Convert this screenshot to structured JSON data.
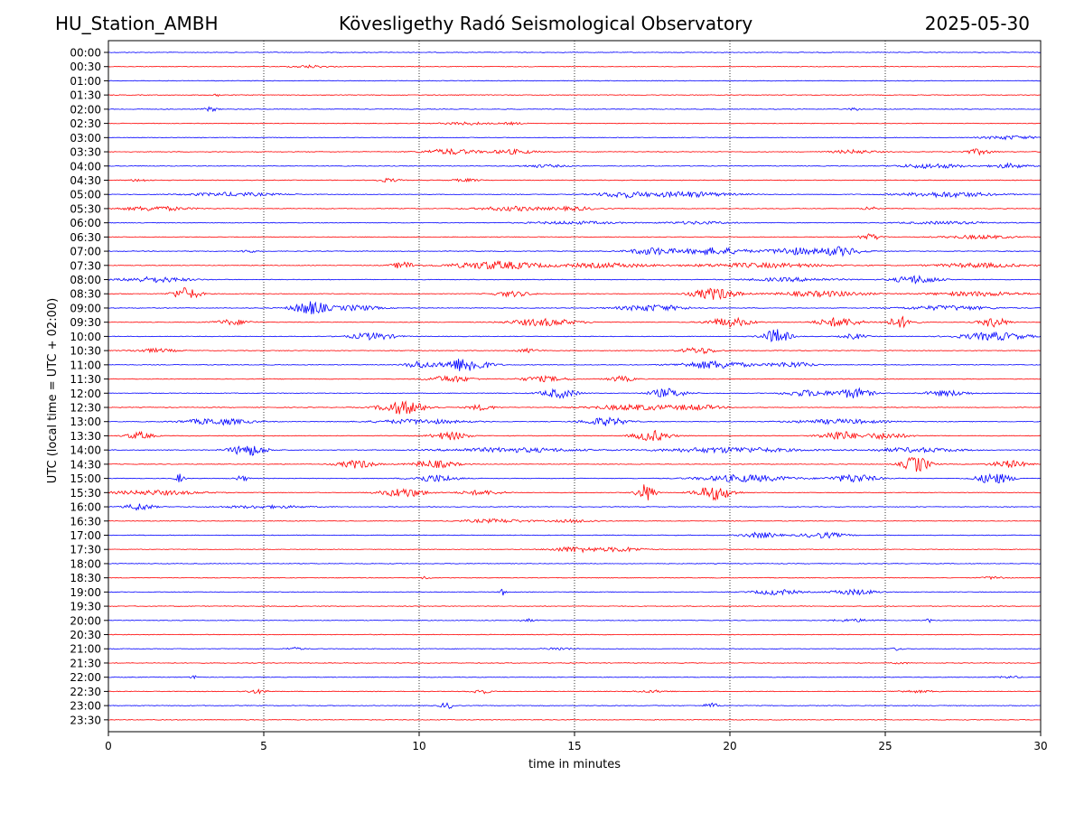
{
  "header": {
    "station": "HU_Station_AMBH",
    "observatory": "Kövesligethy Radó Seismological Observatory",
    "date": "2025-05-30"
  },
  "chart_data": {
    "type": "line",
    "title": "Kövesligethy Radó Seismological Observatory",
    "xlabel": "time in minutes",
    "ylabel": "UTC (local time = UTC + 02:00)",
    "xlim": [
      0,
      30
    ],
    "x_ticks": [
      0,
      5,
      10,
      15,
      20,
      25,
      30
    ],
    "grid": "vertical dotted lines at each x tick",
    "colors": [
      "#0000ff",
      "#ff0000"
    ],
    "rows": [
      {
        "label": "00:00",
        "color": "#0000ff",
        "bursts": []
      },
      {
        "label": "00:30",
        "color": "#ff0000",
        "bursts": [
          [
            6.5,
            0.8,
            1.5
          ]
        ]
      },
      {
        "label": "01:00",
        "color": "#0000ff",
        "bursts": []
      },
      {
        "label": "01:30",
        "color": "#ff0000",
        "bursts": [
          [
            3.5,
            0.2,
            1.5
          ]
        ]
      },
      {
        "label": "02:00",
        "color": "#0000ff",
        "bursts": [
          [
            3.3,
            0.3,
            2.5
          ],
          [
            24.0,
            0.3,
            1.5
          ]
        ]
      },
      {
        "label": "02:30",
        "color": "#ff0000",
        "bursts": [
          [
            11.5,
            1.0,
            1.5
          ],
          [
            13.0,
            0.5,
            1.2
          ]
        ]
      },
      {
        "label": "03:00",
        "color": "#0000ff",
        "bursts": [
          [
            29.0,
            1.2,
            2.0
          ]
        ]
      },
      {
        "label": "03:30",
        "color": "#ff0000",
        "bursts": [
          [
            11.0,
            1.2,
            3.0
          ],
          [
            13.0,
            1.0,
            2.5
          ],
          [
            24.0,
            1.0,
            2.0
          ],
          [
            28.0,
            0.6,
            3.0
          ]
        ]
      },
      {
        "label": "04:00",
        "color": "#0000ff",
        "bursts": [
          [
            14.0,
            1.0,
            1.5
          ],
          [
            26.5,
            1.5,
            2.5
          ],
          [
            29.0,
            0.8,
            2.5
          ]
        ]
      },
      {
        "label": "04:30",
        "color": "#ff0000",
        "bursts": [
          [
            1.0,
            0.4,
            1.5
          ],
          [
            9.0,
            0.5,
            2.0
          ],
          [
            11.5,
            0.6,
            1.5
          ]
        ]
      },
      {
        "label": "05:00",
        "color": "#0000ff",
        "bursts": [
          [
            4.0,
            2.0,
            2.0
          ],
          [
            16.5,
            1.0,
            3.0
          ],
          [
            18.5,
            2.0,
            3.0
          ],
          [
            27.0,
            2.0,
            3.0
          ]
        ]
      },
      {
        "label": "05:30",
        "color": "#ff0000",
        "bursts": [
          [
            1.5,
            1.5,
            2.5
          ],
          [
            13.0,
            1.5,
            2.5
          ],
          [
            15.0,
            1.0,
            2.0
          ],
          [
            24.5,
            0.3,
            2.5
          ]
        ]
      },
      {
        "label": "06:00",
        "color": "#0000ff",
        "bursts": [
          [
            15.0,
            2.0,
            1.5
          ],
          [
            19.0,
            1.5,
            1.5
          ],
          [
            27.0,
            2.0,
            1.5
          ]
        ]
      },
      {
        "label": "06:30",
        "color": "#ff0000",
        "bursts": [
          [
            24.5,
            0.5,
            3.5
          ],
          [
            28.0,
            1.5,
            2.0
          ]
        ]
      },
      {
        "label": "07:00",
        "color": "#0000ff",
        "bursts": [
          [
            4.5,
            0.3,
            2.0
          ],
          [
            17.5,
            1.0,
            4.0
          ],
          [
            19.5,
            1.5,
            4.0
          ],
          [
            22.0,
            1.0,
            4.0
          ],
          [
            23.5,
            1.0,
            5.0
          ]
        ]
      },
      {
        "label": "07:30",
        "color": "#ff0000",
        "bursts": [
          [
            9.5,
            0.5,
            4.0
          ],
          [
            12.5,
            2.0,
            4.5
          ],
          [
            16.0,
            2.0,
            2.5
          ],
          [
            21.0,
            3.0,
            2.5
          ],
          [
            28.0,
            2.0,
            2.5
          ]
        ]
      },
      {
        "label": "08:00",
        "color": "#0000ff",
        "bursts": [
          [
            1.5,
            1.5,
            3.0
          ],
          [
            22.0,
            2.0,
            2.0
          ],
          [
            26.0,
            1.0,
            4.5
          ]
        ]
      },
      {
        "label": "08:30",
        "color": "#ff0000",
        "bursts": [
          [
            2.5,
            0.6,
            7.0
          ],
          [
            13.0,
            0.8,
            3.0
          ],
          [
            19.5,
            1.0,
            6.5
          ],
          [
            23.0,
            2.0,
            3.0
          ],
          [
            28.0,
            2.0,
            2.5
          ]
        ]
      },
      {
        "label": "09:00",
        "color": "#0000ff",
        "bursts": [
          [
            6.5,
            0.8,
            7.5
          ],
          [
            8.0,
            1.0,
            3.0
          ],
          [
            17.5,
            1.5,
            3.5
          ],
          [
            27.0,
            2.0,
            2.5
          ]
        ]
      },
      {
        "label": "09:30",
        "color": "#ff0000",
        "bursts": [
          [
            4.0,
            0.8,
            3.0
          ],
          [
            14.0,
            1.5,
            4.0
          ],
          [
            20.0,
            1.0,
            5.0
          ],
          [
            23.5,
            1.0,
            5.0
          ],
          [
            25.5,
            0.6,
            6.0
          ],
          [
            28.5,
            0.6,
            5.5
          ]
        ]
      },
      {
        "label": "10:00",
        "color": "#0000ff",
        "bursts": [
          [
            8.5,
            1.0,
            4.0
          ],
          [
            21.5,
            0.6,
            8.0
          ],
          [
            24.0,
            0.5,
            3.0
          ],
          [
            28.5,
            1.5,
            4.5
          ]
        ]
      },
      {
        "label": "10:30",
        "color": "#ff0000",
        "bursts": [
          [
            1.5,
            1.0,
            2.0
          ],
          [
            13.5,
            0.5,
            2.0
          ],
          [
            19.0,
            0.8,
            3.5
          ]
        ]
      },
      {
        "label": "11:00",
        "color": "#0000ff",
        "bursts": [
          [
            11.5,
            1.0,
            8.0
          ],
          [
            10.0,
            0.6,
            4.0
          ],
          [
            19.5,
            1.5,
            4.5
          ],
          [
            22.0,
            1.0,
            3.0
          ]
        ]
      },
      {
        "label": "11:30",
        "color": "#ff0000",
        "bursts": [
          [
            11.0,
            1.0,
            3.5
          ],
          [
            14.0,
            1.0,
            3.0
          ],
          [
            16.5,
            0.6,
            3.0
          ]
        ]
      },
      {
        "label": "12:00",
        "color": "#0000ff",
        "bursts": [
          [
            14.5,
            0.8,
            5.0
          ],
          [
            18.0,
            0.8,
            5.0
          ],
          [
            24.0,
            0.8,
            5.5
          ],
          [
            22.5,
            1.0,
            3.5
          ],
          [
            27.0,
            1.0,
            3.0
          ]
        ]
      },
      {
        "label": "12:30",
        "color": "#ff0000",
        "bursts": [
          [
            9.5,
            1.0,
            7.5
          ],
          [
            12.0,
            0.6,
            3.0
          ],
          [
            17.0,
            2.0,
            3.0
          ],
          [
            19.0,
            1.0,
            2.5
          ]
        ]
      },
      {
        "label": "13:00",
        "color": "#0000ff",
        "bursts": [
          [
            3.5,
            1.5,
            3.5
          ],
          [
            16.0,
            1.0,
            4.5
          ],
          [
            10.0,
            2.0,
            2.5
          ],
          [
            23.5,
            2.0,
            2.5
          ]
        ]
      },
      {
        "label": "13:30",
        "color": "#ff0000",
        "bursts": [
          [
            1.0,
            0.6,
            4.0
          ],
          [
            11.0,
            0.8,
            4.5
          ],
          [
            17.5,
            0.8,
            6.0
          ],
          [
            23.5,
            0.8,
            5.5
          ],
          [
            25.0,
            1.0,
            3.5
          ]
        ]
      },
      {
        "label": "14:00",
        "color": "#0000ff",
        "bursts": [
          [
            4.5,
            0.8,
            6.5
          ],
          [
            13.0,
            3.0,
            2.5
          ],
          [
            20.0,
            3.0,
            3.0
          ],
          [
            26.0,
            2.0,
            2.5
          ]
        ]
      },
      {
        "label": "14:30",
        "color": "#ff0000",
        "bursts": [
          [
            8.0,
            0.8,
            4.5
          ],
          [
            10.5,
            1.0,
            4.0
          ],
          [
            26.0,
            0.6,
            9.0
          ],
          [
            29.0,
            0.8,
            4.0
          ]
        ]
      },
      {
        "label": "15:00",
        "color": "#0000ff",
        "bursts": [
          [
            2.3,
            0.2,
            5.0
          ],
          [
            4.3,
            0.3,
            3.0
          ],
          [
            10.5,
            1.0,
            4.0
          ],
          [
            20.5,
            2.0,
            4.0
          ],
          [
            24.0,
            1.0,
            4.5
          ],
          [
            28.5,
            0.8,
            6.0
          ]
        ]
      },
      {
        "label": "15:30",
        "color": "#ff0000",
        "bursts": [
          [
            1.5,
            2.0,
            2.5
          ],
          [
            9.5,
            1.0,
            5.0
          ],
          [
            17.3,
            0.4,
            10.0
          ],
          [
            19.5,
            0.8,
            8.0
          ],
          [
            12.0,
            1.0,
            2.5
          ]
        ]
      },
      {
        "label": "16:00",
        "color": "#0000ff",
        "bursts": [
          [
            1.0,
            0.6,
            4.0
          ],
          [
            5.0,
            2.0,
            1.5
          ]
        ]
      },
      {
        "label": "16:30",
        "color": "#ff0000",
        "bursts": [
          [
            12.5,
            1.5,
            2.0
          ],
          [
            15.0,
            1.0,
            1.5
          ]
        ]
      },
      {
        "label": "17:00",
        "color": "#0000ff",
        "bursts": [
          [
            21.0,
            0.8,
            3.0
          ],
          [
            23.0,
            1.0,
            3.0
          ]
        ]
      },
      {
        "label": "17:30",
        "color": "#ff0000",
        "bursts": [
          [
            15.0,
            1.0,
            3.0
          ],
          [
            16.5,
            1.0,
            2.5
          ]
        ]
      },
      {
        "label": "18:00",
        "color": "#0000ff",
        "bursts": []
      },
      {
        "label": "18:30",
        "color": "#ff0000",
        "bursts": [
          [
            10.2,
            0.2,
            1.5
          ],
          [
            28.5,
            0.5,
            1.5
          ]
        ]
      },
      {
        "label": "19:00",
        "color": "#0000ff",
        "bursts": [
          [
            12.7,
            0.15,
            3.5
          ],
          [
            21.5,
            1.0,
            3.0
          ],
          [
            24.0,
            1.0,
            3.0
          ]
        ]
      },
      {
        "label": "19:30",
        "color": "#ff0000",
        "bursts": []
      },
      {
        "label": "20:00",
        "color": "#0000ff",
        "bursts": [
          [
            13.5,
            0.4,
            1.5
          ],
          [
            24.0,
            1.0,
            1.5
          ],
          [
            26.4,
            0.1,
            2.5
          ]
        ]
      },
      {
        "label": "20:30",
        "color": "#ff0000",
        "bursts": []
      },
      {
        "label": "21:00",
        "color": "#0000ff",
        "bursts": [
          [
            6.0,
            0.4,
            1.5
          ],
          [
            14.5,
            0.6,
            1.5
          ],
          [
            25.4,
            0.2,
            2.0
          ]
        ]
      },
      {
        "label": "21:30",
        "color": "#ff0000",
        "bursts": [
          [
            25.5,
            0.3,
            1.2
          ]
        ]
      },
      {
        "label": "22:00",
        "color": "#0000ff",
        "bursts": [
          [
            2.8,
            0.2,
            1.8
          ],
          [
            29.0,
            0.5,
            1.2
          ]
        ]
      },
      {
        "label": "22:30",
        "color": "#ff0000",
        "bursts": [
          [
            4.8,
            0.5,
            2.0
          ],
          [
            12.0,
            0.4,
            2.5
          ],
          [
            17.5,
            0.8,
            1.2
          ],
          [
            26.0,
            1.0,
            1.2
          ]
        ]
      },
      {
        "label": "23:00",
        "color": "#0000ff",
        "bursts": [
          [
            10.9,
            0.3,
            3.5
          ],
          [
            19.4,
            0.3,
            3.0
          ]
        ]
      },
      {
        "label": "23:30",
        "color": "#ff0000",
        "bursts": []
      }
    ]
  }
}
